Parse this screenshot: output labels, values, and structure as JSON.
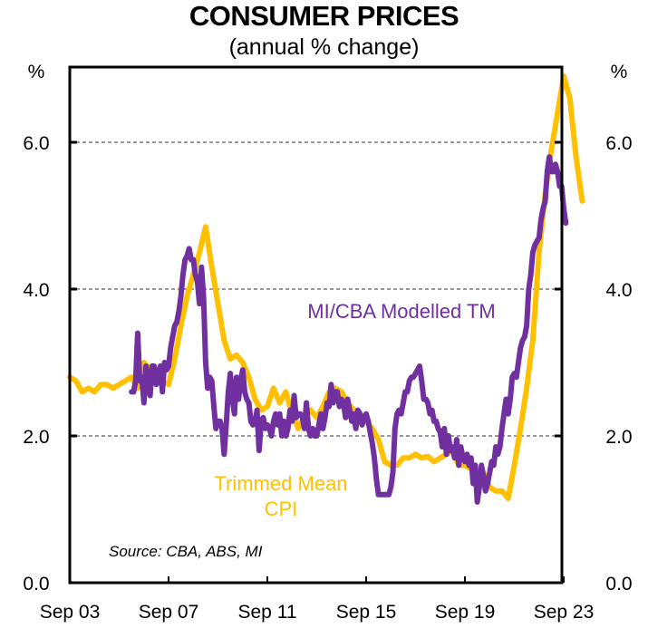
{
  "chart_data": {
    "type": "line",
    "title": "CONSUMER PRICES",
    "subtitle": "(annual % change)",
    "ylabel_left": "%",
    "ylabel_right": "%",
    "ylim": [
      0,
      7
    ],
    "yticks": [
      0.0,
      2.0,
      4.0,
      6.0
    ],
    "ytick_labels": [
      "0.0",
      "2.0",
      "4.0",
      "6.0"
    ],
    "xlim": [
      "Sep 03",
      "Dec 23"
    ],
    "xtick_labels": [
      "Sep 03",
      "Sep 07",
      "Sep 11",
      "Sep 15",
      "Sep 19",
      "Sep 23"
    ],
    "grid": "horizontal dashed",
    "source": "Source: CBA, ABS, MI",
    "series": [
      {
        "name": "Trimmed Mean CPI",
        "label_lines": [
          "Trimmed Mean",
          "CPI"
        ],
        "color": "#FFC000",
        "frequency": "quarterly",
        "start": "Sep 03",
        "values": [
          2.8,
          2.75,
          2.6,
          2.65,
          2.6,
          2.7,
          2.7,
          2.65,
          2.7,
          2.75,
          2.8,
          2.65,
          3.0,
          2.9,
          2.9,
          2.75,
          2.7,
          3.05,
          3.5,
          3.9,
          4.2,
          4.5,
          4.85,
          4.3,
          3.8,
          3.3,
          3.05,
          3.1,
          3.0,
          2.8,
          2.5,
          2.35,
          2.4,
          2.65,
          2.45,
          2.6,
          2.3,
          2.1,
          2.25,
          2.35,
          2.25,
          2.4,
          2.6,
          2.65,
          2.6,
          2.45,
          2.35,
          2.3,
          2.2,
          2.1,
          1.95,
          1.65,
          1.6,
          1.6,
          1.7,
          1.7,
          1.75,
          1.7,
          1.72,
          1.65,
          1.7,
          1.75,
          1.8,
          1.6,
          1.6,
          1.55,
          1.5,
          1.5,
          1.3,
          1.25,
          1.25,
          1.15,
          1.6,
          2.1,
          2.65,
          3.3,
          4.5,
          5.3,
          5.9,
          6.4,
          6.9,
          6.6,
          5.8,
          5.2
        ]
      },
      {
        "name": "MI/CBA Modelled TM",
        "color": "#7030A0",
        "frequency": "monthly",
        "start": "Mar 06",
        "values": [
          2.6,
          2.6,
          2.75,
          3.4,
          2.75,
          2.8,
          2.45,
          2.95,
          2.7,
          2.55,
          2.95,
          2.95,
          2.7,
          2.8,
          2.95,
          2.6,
          3.0,
          2.9,
          2.95,
          3.2,
          3.35,
          3.5,
          3.55,
          3.7,
          3.9,
          4.2,
          4.4,
          4.45,
          4.55,
          4.4,
          4.4,
          4.2,
          4.1,
          3.8,
          4.3,
          3.9,
          3.0,
          2.65,
          2.8,
          2.75,
          2.4,
          2.1,
          2.2,
          2.2,
          2.1,
          1.75,
          2.15,
          2.6,
          2.85,
          2.5,
          2.3,
          2.8,
          2.5,
          2.75,
          2.9,
          2.6,
          2.5,
          2.45,
          2.2,
          2.15,
          2.2,
          2.35,
          1.8,
          2.2,
          2.25,
          2.1,
          2.15,
          2.1,
          2.0,
          2.2,
          2.3,
          2.15,
          2.3,
          2.0,
          2.2,
          2.0,
          2.1,
          2.35,
          2.2,
          2.55,
          2.25,
          2.3,
          2.3,
          2.25,
          2.1,
          2.45,
          2.1,
          2.0,
          2.1,
          2.0,
          2.0,
          2.15,
          2.3,
          2.1,
          2.25,
          2.45,
          2.4,
          2.7,
          2.45,
          2.6,
          2.6,
          2.4,
          2.5,
          2.45,
          2.25,
          2.5,
          2.35,
          2.2,
          2.3,
          2.1,
          2.35,
          2.3,
          2.15,
          2.25,
          2.3,
          2.2,
          2.05,
          1.9,
          1.7,
          1.4,
          1.2,
          1.2,
          1.2,
          1.2,
          1.2,
          1.2,
          1.3,
          1.5,
          2.1,
          2.3,
          2.35,
          2.3,
          2.45,
          2.6,
          2.6,
          2.75,
          2.8,
          2.8,
          2.85,
          2.9,
          2.95,
          2.75,
          2.5,
          2.5,
          2.45,
          2.3,
          2.35,
          2.2,
          2.2,
          2.1,
          2.05,
          1.85,
          2.1,
          1.75,
          2.0,
          1.8,
          1.85,
          1.7,
          1.95,
          1.6,
          1.85,
          1.7,
          1.65,
          1.75,
          1.6,
          1.7,
          1.35,
          1.6,
          1.1,
          1.3,
          1.6,
          1.45,
          1.25,
          1.35,
          1.5,
          1.65,
          1.6,
          1.85,
          1.75,
          1.85,
          2.1,
          2.3,
          2.5,
          2.3,
          2.5,
          2.8,
          2.85,
          2.8,
          3.0,
          3.2,
          3.3,
          3.35,
          3.5,
          4.0,
          4.2,
          4.5,
          4.6,
          4.65,
          4.7,
          4.95,
          5.1,
          5.2,
          5.6,
          5.8,
          5.6,
          5.6,
          5.7,
          5.6,
          5.4,
          5.4,
          5.1,
          4.9
        ]
      }
    ]
  }
}
